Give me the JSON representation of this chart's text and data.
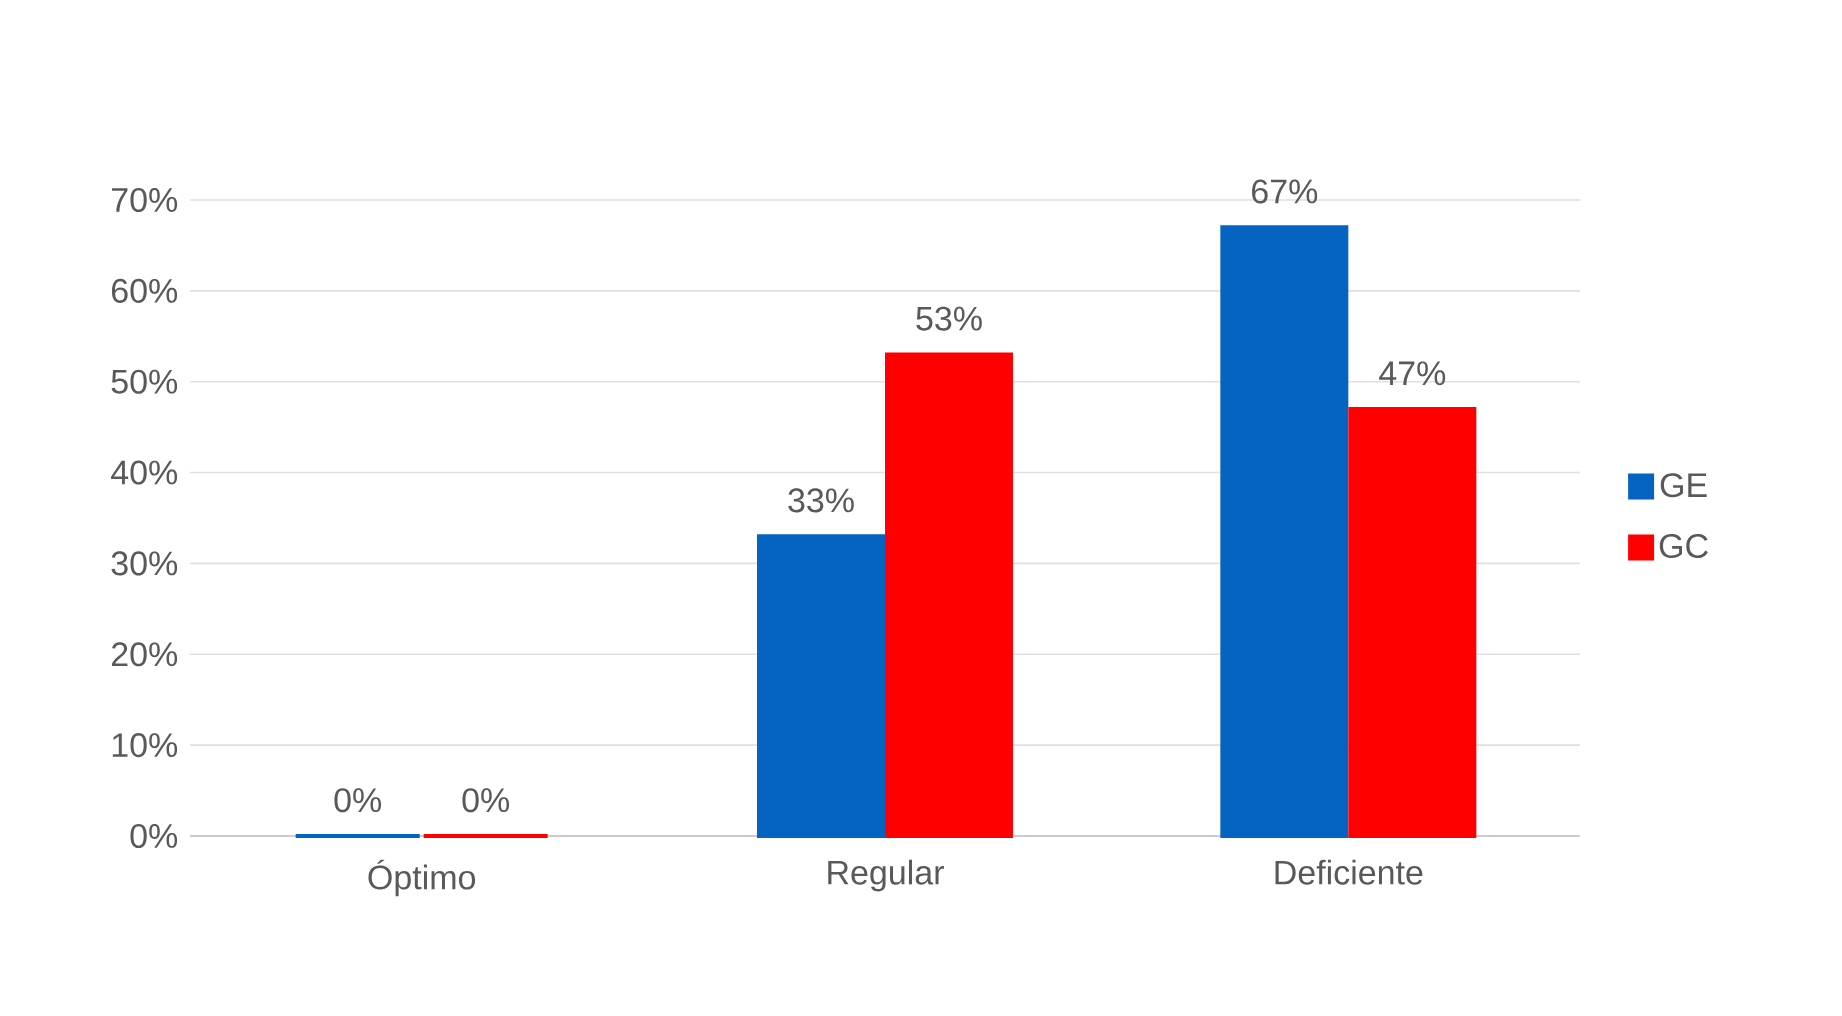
{
  "chart_data": {
    "type": "bar",
    "categories": [
      "Óptimo",
      "Regular",
      "Deficiente"
    ],
    "series": [
      {
        "name": "GE",
        "color": "#0563c1",
        "values": [
          0,
          33,
          67
        ],
        "value_labels": [
          "0%",
          "33%",
          "67%"
        ]
      },
      {
        "name": "GC",
        "color": "#ff0000",
        "values": [
          0,
          53,
          47
        ],
        "value_labels": [
          "0%",
          "53%",
          "47%"
        ]
      }
    ],
    "ylim": [
      0,
      70
    ],
    "yticks": [
      {
        "value": 0,
        "label": "0%"
      },
      {
        "value": 10,
        "label": "10%"
      },
      {
        "value": 20,
        "label": "20%"
      },
      {
        "value": 30,
        "label": "30%"
      },
      {
        "value": 40,
        "label": "40%"
      },
      {
        "value": 50,
        "label": "50%"
      },
      {
        "value": 60,
        "label": "60%"
      },
      {
        "value": 70,
        "label": "70%"
      }
    ],
    "grid": "y",
    "legend": "right"
  }
}
